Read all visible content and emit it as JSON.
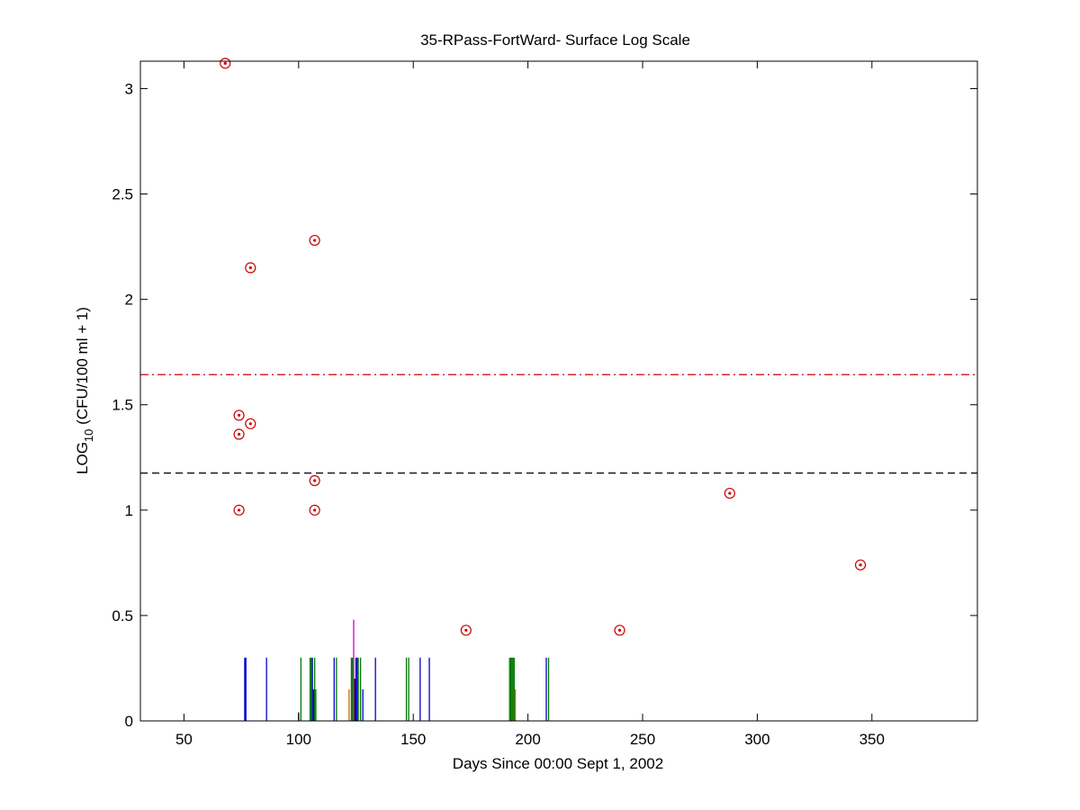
{
  "chart_data": {
    "type": "scatter",
    "title": "35-RPass-FortWard- Surface Log Scale",
    "xlabel": "Days Since 00:00 Sept 1, 2002",
    "ylabel": {
      "prefix": "LOG",
      "subscript": "10",
      "suffix": " (CFU/100 ml + 1)"
    },
    "xlim": [
      31,
      396
    ],
    "ylim": [
      0,
      3.13
    ],
    "xticks": [
      50,
      100,
      150,
      200,
      250,
      300,
      350
    ],
    "yticks": [
      0,
      0.5,
      1,
      1.5,
      2,
      2.5,
      3
    ],
    "ytick_labels": [
      "0",
      "0.5",
      "1",
      "1.5",
      "2",
      "2.5",
      "3"
    ],
    "grid": false,
    "legend": "none",
    "colors": {
      "points": "#cc0000",
      "threshold_high": "#cc0000",
      "threshold_low": "#000000",
      "blue_events": "#0000cc",
      "green_events": "#007700",
      "magenta_events": "#cc00cc",
      "black_events": "#000000",
      "orange_events": "#cc6600"
    },
    "points": [
      {
        "x": 68,
        "y": 3.12
      },
      {
        "x": 74,
        "y": 1.45
      },
      {
        "x": 74,
        "y": 1.36
      },
      {
        "x": 74,
        "y": 1.0
      },
      {
        "x": 79,
        "y": 2.15
      },
      {
        "x": 79,
        "y": 1.41
      },
      {
        "x": 107,
        "y": 2.28
      },
      {
        "x": 107,
        "y": 1.14
      },
      {
        "x": 107,
        "y": 1.0
      },
      {
        "x": 173,
        "y": 0.43
      },
      {
        "x": 240,
        "y": 0.43
      },
      {
        "x": 288,
        "y": 1.08
      },
      {
        "x": 345,
        "y": 0.74
      }
    ],
    "reference_lines": [
      {
        "y": 1.643,
        "style": "dashdot",
        "color_key": "threshold_high"
      },
      {
        "y": 1.176,
        "style": "dashed",
        "color_key": "threshold_low"
      }
    ],
    "event_bars": [
      {
        "x": 76.5,
        "h": 0.3,
        "c": "blue_events"
      },
      {
        "x": 77,
        "h": 0.3,
        "c": "blue_events"
      },
      {
        "x": 86,
        "h": 0.3,
        "c": "blue_events"
      },
      {
        "x": 100,
        "h": 0.04,
        "c": "black_events"
      },
      {
        "x": 101,
        "h": 0.3,
        "c": "green_events"
      },
      {
        "x": 105,
        "h": 0.3,
        "c": "green_events"
      },
      {
        "x": 105.5,
        "h": 0.3,
        "c": "green_events"
      },
      {
        "x": 106,
        "h": 0.3,
        "c": "blue_events"
      },
      {
        "x": 106.5,
        "h": 0.15,
        "c": "blue_events"
      },
      {
        "x": 107,
        "h": 0.3,
        "c": "green_events"
      },
      {
        "x": 107.5,
        "h": 0.15,
        "c": "green_events"
      },
      {
        "x": 115.5,
        "h": 0.3,
        "c": "blue_events"
      },
      {
        "x": 116.5,
        "h": 0.3,
        "c": "green_events"
      },
      {
        "x": 122,
        "h": 0.15,
        "c": "orange_events"
      },
      {
        "x": 123,
        "h": 0.3,
        "c": "green_events"
      },
      {
        "x": 123.5,
        "h": 0.3,
        "c": "green_events"
      },
      {
        "x": 124,
        "h": 0.48,
        "c": "magenta_events"
      },
      {
        "x": 124.5,
        "h": 0.2,
        "c": "black_events"
      },
      {
        "x": 125,
        "h": 0.3,
        "c": "blue_events"
      },
      {
        "x": 125.5,
        "h": 0.3,
        "c": "blue_events"
      },
      {
        "x": 126,
        "h": 0.3,
        "c": "green_events"
      },
      {
        "x": 127,
        "h": 0.3,
        "c": "green_events"
      },
      {
        "x": 128,
        "h": 0.15,
        "c": "blue_events"
      },
      {
        "x": 133.5,
        "h": 0.3,
        "c": "blue_events"
      },
      {
        "x": 147,
        "h": 0.3,
        "c": "green_events"
      },
      {
        "x": 148,
        "h": 0.3,
        "c": "green_events"
      },
      {
        "x": 153,
        "h": 0.3,
        "c": "blue_events"
      },
      {
        "x": 157,
        "h": 0.3,
        "c": "blue_events"
      },
      {
        "x": 192,
        "h": 0.3,
        "c": "green_events"
      },
      {
        "x": 192.5,
        "h": 0.3,
        "c": "green_events"
      },
      {
        "x": 193,
        "h": 0.3,
        "c": "green_events"
      },
      {
        "x": 193.5,
        "h": 0.3,
        "c": "green_events"
      },
      {
        "x": 194,
        "h": 0.3,
        "c": "green_events"
      },
      {
        "x": 194.5,
        "h": 0.15,
        "c": "orange_events"
      },
      {
        "x": 208,
        "h": 0.3,
        "c": "blue_events"
      },
      {
        "x": 209,
        "h": 0.3,
        "c": "green_events"
      }
    ]
  }
}
